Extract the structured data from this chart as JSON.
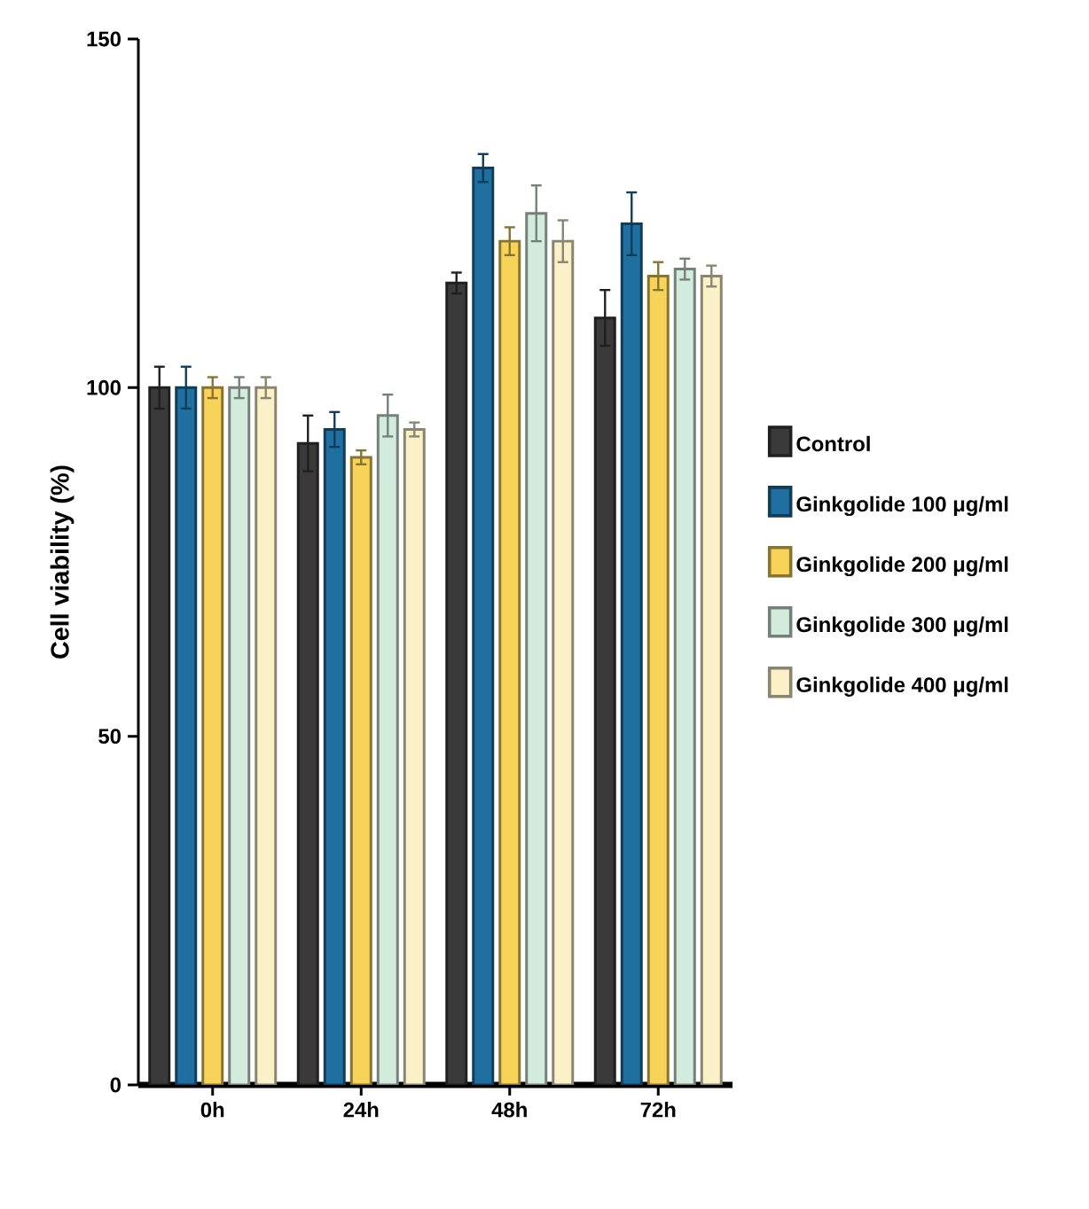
{
  "chart_data": {
    "type": "bar",
    "ylabel": "Cell viability (%)",
    "categories": [
      "0h",
      "24h",
      "48h",
      "72h"
    ],
    "ylim": [
      0,
      150
    ],
    "yticks": [
      0,
      50,
      100,
      150
    ],
    "grid": false,
    "legend": "right",
    "series": [
      {
        "name": "Control",
        "color": "#3a3a3a",
        "values": [
          100,
          92,
          115,
          110
        ],
        "errors": [
          3,
          4,
          1.5,
          4
        ]
      },
      {
        "name": "Ginkgolide 100 μg/ml",
        "color": "#1f6fa0",
        "values": [
          100,
          94,
          131.5,
          123.5
        ],
        "errors": [
          3,
          2.5,
          2,
          4.5
        ]
      },
      {
        "name": "Ginkgolide  200 μg/ml",
        "color": "#f7d35a",
        "values": [
          100,
          90,
          121,
          116
        ],
        "errors": [
          1.5,
          1,
          2,
          2
        ]
      },
      {
        "name": "Ginkgolide  300 μg/ml",
        "color": "#d3ebdc",
        "values": [
          100,
          96,
          125,
          117
        ],
        "errors": [
          1.5,
          3,
          4,
          1.5
        ]
      },
      {
        "name": "Ginkgolide  400 μg/ml",
        "color": "#fbf1c8",
        "values": [
          100,
          94,
          121,
          116
        ],
        "errors": [
          1.5,
          1,
          3,
          1.5
        ]
      }
    ]
  }
}
